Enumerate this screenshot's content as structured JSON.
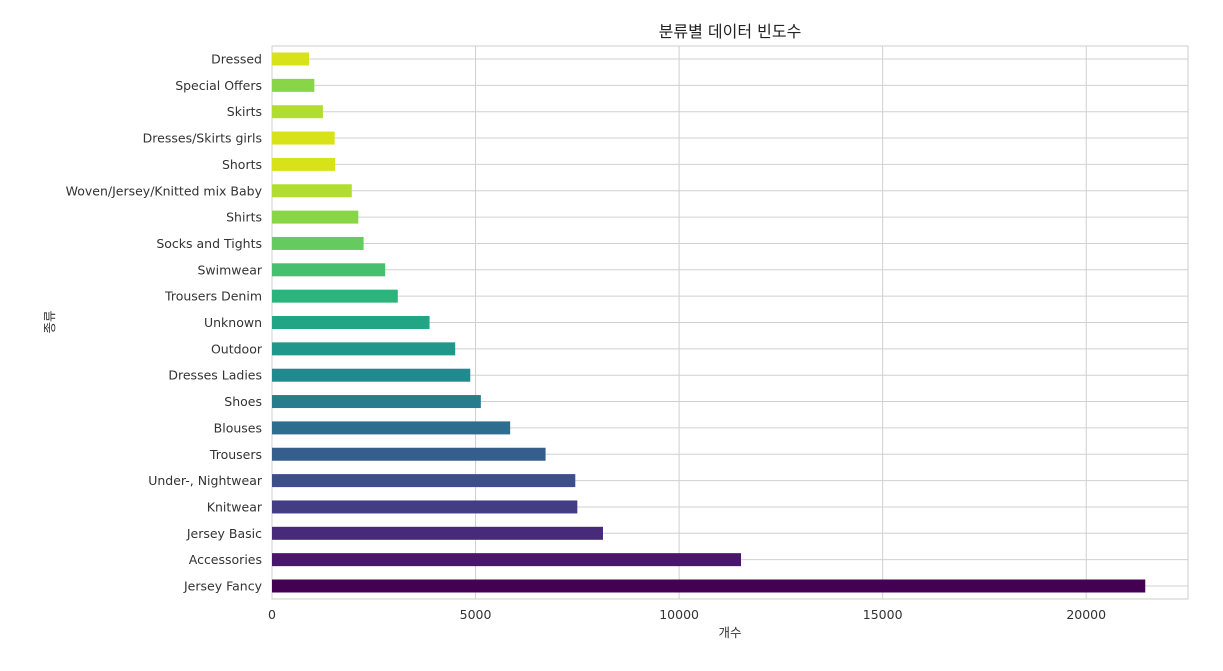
{
  "chart_data": {
    "type": "bar",
    "orientation": "horizontal",
    "title": "분류별 데이터 빈도수",
    "xlabel": "개수",
    "ylabel": "종류",
    "xlim": [
      0,
      22500
    ],
    "xticks": [
      0,
      5000,
      10000,
      15000,
      20000
    ],
    "grid": true,
    "colormap": "viridis",
    "categories": [
      "Jersey Fancy",
      "Accessories",
      "Jersey Basic",
      "Knitwear",
      "Under-, Nightwear",
      "Trousers",
      "Blouses",
      "Shoes",
      "Dresses Ladies",
      "Outdoor",
      "Unknown",
      "Trousers Denim",
      "Swimwear",
      "Socks and Tights",
      "Shirts",
      "Woven/Jersey/Knitted mix Baby",
      "Shorts",
      "Dresses/Skirts girls",
      "Skirts",
      "Special Offers",
      "Dressed"
    ],
    "values": [
      21450,
      11520,
      8130,
      7500,
      7450,
      6720,
      5850,
      5130,
      4870,
      4500,
      3870,
      3090,
      2780,
      2250,
      2120,
      1960,
      1550,
      1540,
      1250,
      1040,
      910
    ],
    "colors": [
      "#440154",
      "#481769",
      "#472a7a",
      "#433d84",
      "#3d4e8a",
      "#355e8d",
      "#2e6d8e",
      "#297b8e",
      "#23898e",
      "#1f978b",
      "#21a585",
      "#2eb37c",
      "#46c06f",
      "#65cb5e",
      "#89d548",
      "#b0dd2f",
      "#d8e219",
      "#d8e219",
      "#b0dd2f",
      "#89d548",
      "#d8e219"
    ]
  }
}
